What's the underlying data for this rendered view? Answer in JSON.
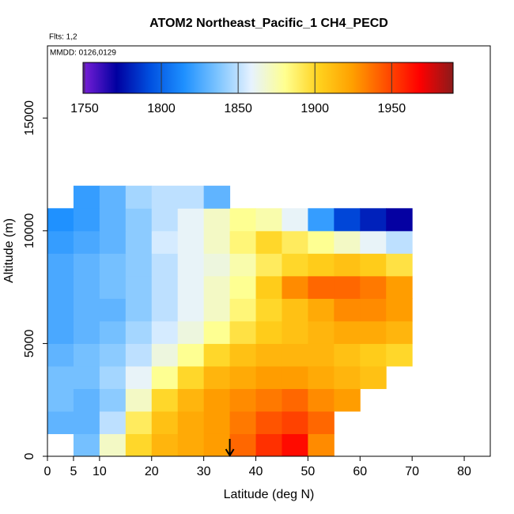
{
  "chart_data": {
    "type": "heatmap",
    "title": "ATOM2 Northeast_Pacific_1 CH4_PECD",
    "flights": "Flts: 1,2",
    "dates": "MMDD: 0126,0129",
    "xlabel": "Latitude (deg N)",
    "ylabel": "Altitude (m)",
    "xlim": [
      0,
      85
    ],
    "ylim": [
      0,
      18200
    ],
    "xticks": [
      0,
      5,
      10,
      20,
      30,
      40,
      50,
      60,
      70,
      80
    ],
    "yticks": [
      0,
      5000,
      10000,
      15000
    ],
    "xbins": [
      0,
      5,
      10,
      15,
      20,
      25,
      30,
      35,
      40,
      45,
      50,
      55,
      60,
      65,
      70
    ],
    "ybins": [
      0,
      1000,
      2000,
      3000,
      4000,
      5000,
      6000,
      7000,
      8000,
      9000,
      10000,
      11000,
      12000
    ],
    "values": [
      [
        null,
        1835,
        1870,
        1900,
        1915,
        1920,
        1925,
        1940,
        1955,
        1965,
        1930,
        null,
        null,
        null
      ],
      [
        1830,
        1830,
        1850,
        1890,
        1910,
        1920,
        1925,
        1935,
        1945,
        1950,
        1940,
        null,
        null,
        null
      ],
      [
        1835,
        1830,
        1840,
        1870,
        1900,
        1915,
        1925,
        1930,
        1935,
        1940,
        1930,
        1925,
        null,
        null
      ],
      [
        1835,
        1835,
        1845,
        1860,
        1880,
        1900,
        1915,
        1920,
        1925,
        1925,
        1920,
        1915,
        1910,
        null
      ],
      [
        1830,
        1835,
        1840,
        1850,
        1865,
        1880,
        1900,
        1910,
        1915,
        1915,
        1915,
        1910,
        1905,
        1900
      ],
      [
        1825,
        1830,
        1835,
        1845,
        1855,
        1865,
        1880,
        1895,
        1905,
        1910,
        1915,
        1920,
        1920,
        1915
      ],
      [
        1825,
        1830,
        1830,
        1840,
        1850,
        1860,
        1870,
        1885,
        1900,
        1910,
        1920,
        1930,
        1930,
        1925
      ],
      [
        1825,
        1830,
        1835,
        1840,
        1850,
        1860,
        1870,
        1880,
        1905,
        1930,
        1940,
        1940,
        1935,
        1925
      ],
      [
        1825,
        1830,
        1835,
        1840,
        1850,
        1860,
        1865,
        1875,
        1890,
        1900,
        1905,
        1910,
        1905,
        1895
      ],
      [
        1820,
        1825,
        1830,
        1840,
        1855,
        1860,
        1870,
        1885,
        1900,
        1890,
        1880,
        1870,
        1860,
        1850
      ],
      [
        1815,
        1820,
        1830,
        1840,
        1850,
        1860,
        1870,
        1880,
        1875,
        1860,
        1820,
        1790,
        1780,
        1770
      ],
      [
        null,
        1820,
        1830,
        1845,
        1850,
        1850,
        1830,
        null,
        null,
        null,
        null,
        null,
        null,
        null
      ]
    ],
    "arrow_lat": 35,
    "colorbar": {
      "lim": [
        1749,
        1990
      ],
      "ticks": [
        1750,
        1800,
        1850,
        1900,
        1950
      ],
      "colors": [
        "#7a1fd8",
        "#0000a0",
        "#0050e0",
        "#1e90ff",
        "#7cc4ff",
        "#e6f2ff",
        "#ffff90",
        "#ffd21e",
        "#ffa000",
        "#ff5000",
        "#ff0000",
        "#8b1a1a"
      ]
    }
  }
}
